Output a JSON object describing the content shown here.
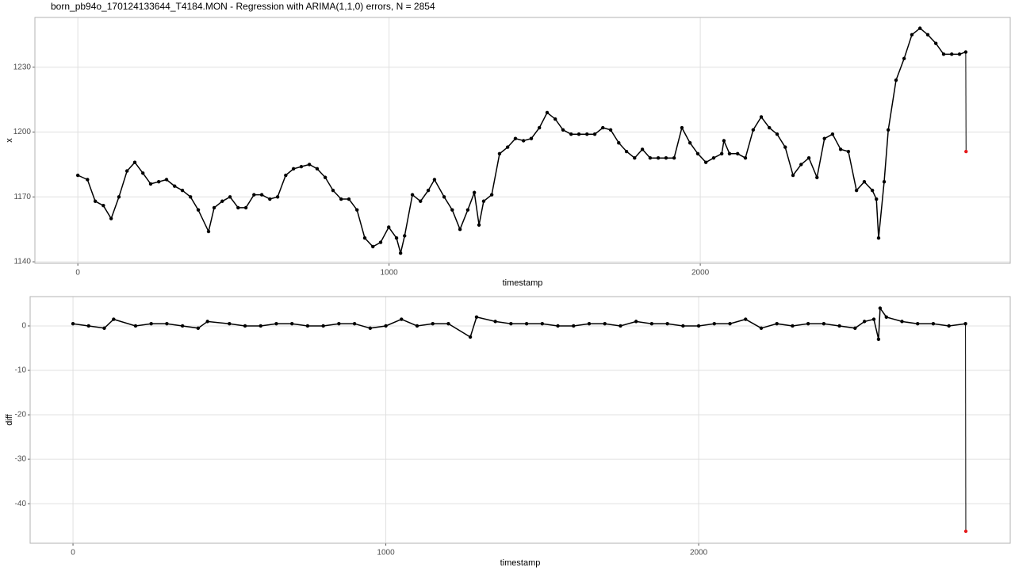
{
  "chart_data": [
    {
      "type": "line",
      "title": "born_pb94o_170124133644_T4184.MON - Regression with ARIMA(1,1,0) errors, N = 2854",
      "xlabel": "timestamp",
      "ylabel": "x",
      "xlim": [
        -138,
        2996
      ],
      "ylim": [
        1139.3,
        1253
      ],
      "xticks": [
        0,
        1000,
        2000
      ],
      "yticks": [
        1140,
        1170,
        1200,
        1230
      ],
      "grid": true,
      "series": [
        {
          "color": "#000000",
          "x": [
            0,
            31,
            56,
            82,
            107,
            132,
            158,
            183,
            209,
            234,
            260,
            285,
            311,
            336,
            362,
            387,
            420,
            438,
            464,
            489,
            515,
            540,
            566,
            591,
            617,
            642,
            668,
            693,
            718,
            744,
            769,
            795,
            820,
            846,
            871,
            897,
            922,
            948,
            973,
            999,
            1024,
            1037,
            1050,
            1075,
            1101,
            1126,
            1146,
            1177,
            1203,
            1228,
            1253,
            1274,
            1289,
            1304,
            1330,
            1355,
            1381,
            1406,
            1432,
            1457,
            1483,
            1508,
            1534,
            1559,
            1585,
            1610,
            1636,
            1661,
            1687,
            1712,
            1738,
            1763,
            1789,
            1814,
            1839,
            1865,
            1890,
            1916,
            1941,
            1967,
            1992,
            2018,
            2043,
            2069,
            2076,
            2094,
            2120,
            2145,
            2170,
            2196,
            2222,
            2247,
            2273,
            2298,
            2324,
            2349,
            2375,
            2399,
            2425,
            2451,
            2476,
            2502,
            2527,
            2553,
            2566,
            2573,
            2591,
            2604,
            2629,
            2655,
            2680,
            2706,
            2731,
            2757,
            2782,
            2808,
            2833,
            2853
          ],
          "values": [
            1180,
            1178,
            1168,
            1166,
            1160,
            1170,
            1182,
            1186,
            1181,
            1176,
            1177,
            1178,
            1175,
            1173,
            1170,
            1164,
            1154,
            1165,
            1168,
            1170,
            1165,
            1165,
            1171,
            1171,
            1169,
            1170,
            1180,
            1183,
            1184,
            1185,
            1183,
            1179,
            1173,
            1169,
            1169,
            1164,
            1151,
            1147,
            1149,
            1156,
            1151,
            1144,
            1152,
            1171,
            1168,
            1173,
            1178,
            1170,
            1164,
            1155,
            1164,
            1172,
            1157,
            1168,
            1171,
            1190,
            1193,
            1197,
            1196,
            1197,
            1202,
            1209,
            1206,
            1201,
            1199,
            1199,
            1199,
            1199,
            1202,
            1201,
            1195,
            1191,
            1188,
            1192,
            1188,
            1188,
            1188,
            1188,
            1202,
            1195,
            1190,
            1186,
            1188,
            1190,
            1196,
            1190,
            1190,
            1188,
            1201,
            1207,
            1202,
            1199,
            1193,
            1180,
            1185,
            1188,
            1179,
            1197,
            1199,
            1192,
            1191,
            1173,
            1177,
            1173,
            1169,
            1151,
            1177,
            1201,
            1224,
            1234,
            1245,
            1248,
            1245,
            1241,
            1236,
            1236,
            1236,
            1237
          ]
        },
        {
          "color": "#e41a1c",
          "x": [
            2854
          ],
          "values": [
            1191
          ]
        }
      ]
    },
    {
      "type": "line",
      "xlabel": "timestamp",
      "ylabel": "diff",
      "xlim": [
        -137,
        2996
      ],
      "ylim": [
        -48.9,
        6.6
      ],
      "xticks": [
        0,
        1000,
        2000
      ],
      "yticks": [
        0,
        -10,
        -20,
        -30,
        -40
      ],
      "grid": true,
      "series": [
        {
          "color": "#000000",
          "x": [
            0,
            50,
            100,
            130,
            200,
            250,
            300,
            350,
            400,
            430,
            500,
            550,
            600,
            650,
            700,
            750,
            800,
            850,
            900,
            950,
            1000,
            1050,
            1100,
            1150,
            1200,
            1270,
            1290,
            1350,
            1400,
            1450,
            1500,
            1550,
            1600,
            1650,
            1700,
            1750,
            1800,
            1850,
            1900,
            1950,
            2000,
            2050,
            2100,
            2150,
            2200,
            2250,
            2300,
            2350,
            2400,
            2450,
            2500,
            2530,
            2560,
            2575,
            2580,
            2600,
            2650,
            2700,
            2750,
            2800,
            2853
          ],
          "values": [
            0.5,
            0,
            -0.5,
            1.5,
            0,
            0.5,
            0.5,
            0,
            -0.5,
            1,
            0.5,
            0,
            0,
            0.5,
            0.5,
            0,
            0,
            0.5,
            0.5,
            -0.5,
            0,
            1.5,
            0,
            0.5,
            0.5,
            -2.5,
            2,
            1,
            0.5,
            0.5,
            0.5,
            0,
            0,
            0.5,
            0.5,
            0,
            1,
            0.5,
            0.5,
            0,
            0,
            0.5,
            0.5,
            1.5,
            -0.5,
            0.5,
            0,
            0.5,
            0.5,
            0,
            -0.5,
            1,
            1.5,
            -3,
            4,
            2,
            1,
            0.5,
            0.5,
            0,
            0.5
          ]
        },
        {
          "color": "#e41a1c",
          "x": [
            2854
          ],
          "values": [
            -46.2
          ]
        }
      ]
    }
  ]
}
